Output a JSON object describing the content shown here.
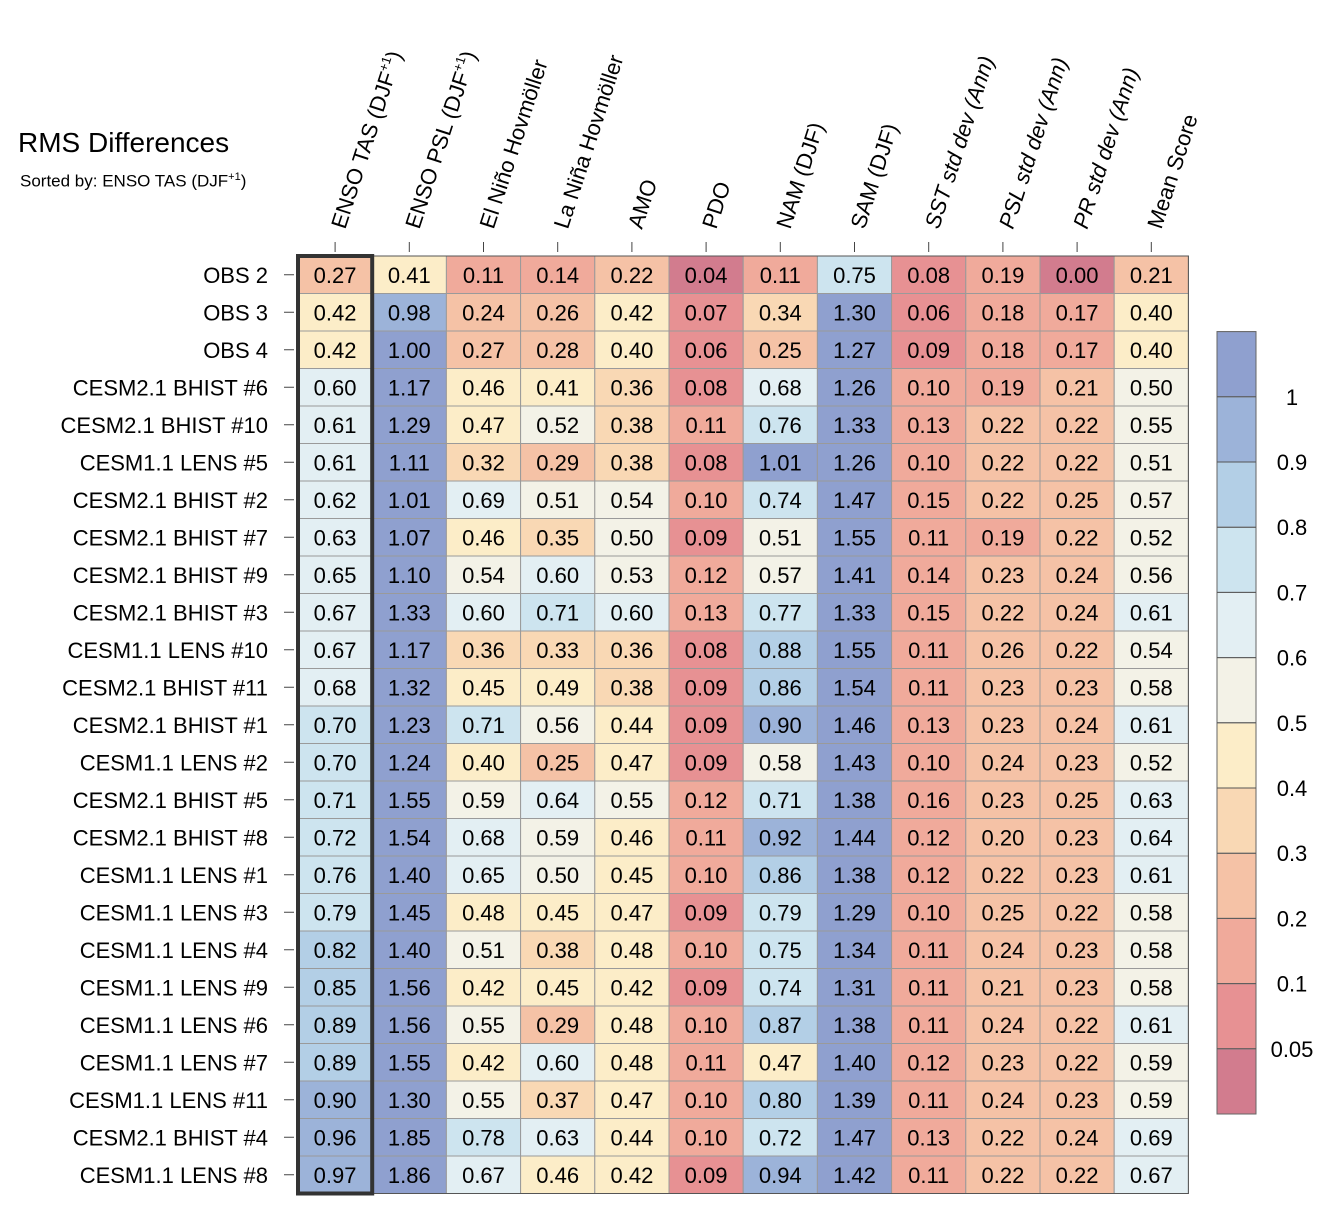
{
  "chart_data": {
    "type": "heatmap",
    "title": "RMS Differences",
    "subtitle": "Sorted by: ENSO TAS (DJF",
    "subtitle_sup": "+1",
    "subtitle_tail": ")",
    "columns": [
      {
        "label": "ENSO TAS (DJF",
        "sup": "+1",
        "tail": ")",
        "italic": false
      },
      {
        "label": "ENSO PSL (DJF",
        "sup": "+1",
        "tail": ")",
        "italic": false
      },
      {
        "label": "El Niño Hovmöller",
        "italic": false
      },
      {
        "label": "La Niña Hovmöller",
        "italic": false
      },
      {
        "label": "AMO",
        "italic": false
      },
      {
        "label": "PDO",
        "italic": false
      },
      {
        "label": "NAM (DJF)",
        "italic": false
      },
      {
        "label": "SAM (DJF)",
        "italic": false
      },
      {
        "label": "SST std dev (Ann)",
        "italic": true
      },
      {
        "label": "PSL std dev (Ann)",
        "italic": true
      },
      {
        "label": "PR std dev (Ann)",
        "italic": true
      },
      {
        "label": "Mean Score",
        "italic": false
      }
    ],
    "rows": [
      "OBS 2",
      "OBS 3",
      "OBS 4",
      "CESM2.1 BHIST #6",
      "CESM2.1 BHIST #10",
      "CESM1.1 LENS #5",
      "CESM2.1 BHIST #2",
      "CESM2.1 BHIST #7",
      "CESM2.1 BHIST #9",
      "CESM2.1 BHIST #3",
      "CESM1.1 LENS #10",
      "CESM2.1 BHIST #11",
      "CESM2.1 BHIST #1",
      "CESM1.1 LENS #2",
      "CESM2.1 BHIST #5",
      "CESM2.1 BHIST #8",
      "CESM1.1 LENS #1",
      "CESM1.1 LENS #3",
      "CESM1.1 LENS #4",
      "CESM1.1 LENS #9",
      "CESM1.1 LENS #6",
      "CESM1.1 LENS #7",
      "CESM1.1 LENS #11",
      "CESM2.1 BHIST #4",
      "CESM1.1 LENS #8"
    ],
    "values": [
      [
        "0.27",
        "0.41",
        "0.11",
        "0.14",
        "0.22",
        "0.04",
        "0.11",
        "0.75",
        "0.08",
        "0.19",
        "0.00",
        "0.21"
      ],
      [
        "0.42",
        "0.98",
        "0.24",
        "0.26",
        "0.42",
        "0.07",
        "0.34",
        "1.30",
        "0.06",
        "0.18",
        "0.17",
        "0.40"
      ],
      [
        "0.42",
        "1.00",
        "0.27",
        "0.28",
        "0.40",
        "0.06",
        "0.25",
        "1.27",
        "0.09",
        "0.18",
        "0.17",
        "0.40"
      ],
      [
        "0.60",
        "1.17",
        "0.46",
        "0.41",
        "0.36",
        "0.08",
        "0.68",
        "1.26",
        "0.10",
        "0.19",
        "0.21",
        "0.50"
      ],
      [
        "0.61",
        "1.29",
        "0.47",
        "0.52",
        "0.38",
        "0.11",
        "0.76",
        "1.33",
        "0.13",
        "0.22",
        "0.22",
        "0.55"
      ],
      [
        "0.61",
        "1.11",
        "0.32",
        "0.29",
        "0.38",
        "0.08",
        "1.01",
        "1.26",
        "0.10",
        "0.22",
        "0.22",
        "0.51"
      ],
      [
        "0.62",
        "1.01",
        "0.69",
        "0.51",
        "0.54",
        "0.10",
        "0.74",
        "1.47",
        "0.15",
        "0.22",
        "0.25",
        "0.57"
      ],
      [
        "0.63",
        "1.07",
        "0.46",
        "0.35",
        "0.50",
        "0.09",
        "0.51",
        "1.55",
        "0.11",
        "0.19",
        "0.22",
        "0.52"
      ],
      [
        "0.65",
        "1.10",
        "0.54",
        "0.60",
        "0.53",
        "0.12",
        "0.57",
        "1.41",
        "0.14",
        "0.23",
        "0.24",
        "0.56"
      ],
      [
        "0.67",
        "1.33",
        "0.60",
        "0.71",
        "0.60",
        "0.13",
        "0.77",
        "1.33",
        "0.15",
        "0.22",
        "0.24",
        "0.61"
      ],
      [
        "0.67",
        "1.17",
        "0.36",
        "0.33",
        "0.36",
        "0.08",
        "0.88",
        "1.55",
        "0.11",
        "0.26",
        "0.22",
        "0.54"
      ],
      [
        "0.68",
        "1.32",
        "0.45",
        "0.49",
        "0.38",
        "0.09",
        "0.86",
        "1.54",
        "0.11",
        "0.23",
        "0.23",
        "0.58"
      ],
      [
        "0.70",
        "1.23",
        "0.71",
        "0.56",
        "0.44",
        "0.09",
        "0.90",
        "1.46",
        "0.13",
        "0.23",
        "0.24",
        "0.61"
      ],
      [
        "0.70",
        "1.24",
        "0.40",
        "0.25",
        "0.47",
        "0.09",
        "0.58",
        "1.43",
        "0.10",
        "0.24",
        "0.23",
        "0.52"
      ],
      [
        "0.71",
        "1.55",
        "0.59",
        "0.64",
        "0.55",
        "0.12",
        "0.71",
        "1.38",
        "0.16",
        "0.23",
        "0.25",
        "0.63"
      ],
      [
        "0.72",
        "1.54",
        "0.68",
        "0.59",
        "0.46",
        "0.11",
        "0.92",
        "1.44",
        "0.12",
        "0.20",
        "0.23",
        "0.64"
      ],
      [
        "0.76",
        "1.40",
        "0.65",
        "0.50",
        "0.45",
        "0.10",
        "0.86",
        "1.38",
        "0.12",
        "0.22",
        "0.23",
        "0.61"
      ],
      [
        "0.79",
        "1.45",
        "0.48",
        "0.45",
        "0.47",
        "0.09",
        "0.79",
        "1.29",
        "0.10",
        "0.25",
        "0.22",
        "0.58"
      ],
      [
        "0.82",
        "1.40",
        "0.51",
        "0.38",
        "0.48",
        "0.10",
        "0.75",
        "1.34",
        "0.11",
        "0.24",
        "0.23",
        "0.58"
      ],
      [
        "0.85",
        "1.56",
        "0.42",
        "0.45",
        "0.42",
        "0.09",
        "0.74",
        "1.31",
        "0.11",
        "0.21",
        "0.23",
        "0.58"
      ],
      [
        "0.89",
        "1.56",
        "0.55",
        "0.29",
        "0.48",
        "0.10",
        "0.87",
        "1.38",
        "0.11",
        "0.24",
        "0.22",
        "0.61"
      ],
      [
        "0.89",
        "1.55",
        "0.42",
        "0.60",
        "0.48",
        "0.11",
        "0.47",
        "1.40",
        "0.12",
        "0.23",
        "0.22",
        "0.59"
      ],
      [
        "0.90",
        "1.30",
        "0.55",
        "0.37",
        "0.47",
        "0.10",
        "0.80",
        "1.39",
        "0.11",
        "0.24",
        "0.23",
        "0.59"
      ],
      [
        "0.96",
        "1.85",
        "0.78",
        "0.63",
        "0.44",
        "0.10",
        "0.72",
        "1.47",
        "0.13",
        "0.22",
        "0.24",
        "0.69"
      ],
      [
        "0.97",
        "1.86",
        "0.67",
        "0.46",
        "0.42",
        "0.09",
        "0.94",
        "1.42",
        "0.11",
        "0.22",
        "0.22",
        "0.67"
      ]
    ],
    "sorted_column": 0,
    "colorbar": {
      "thresholds": [
        0.05,
        0.1,
        0.2,
        0.3,
        0.4,
        0.5,
        0.6,
        0.7,
        0.8,
        0.9,
        1
      ],
      "tick_labels": [
        "0.05",
        "0.1",
        "0.2",
        "0.3",
        "0.4",
        "0.5",
        "0.6",
        "0.7",
        "0.8",
        "0.9",
        "1"
      ],
      "colors": [
        "#d27c8e",
        "#e79193",
        "#f0aa9b",
        "#f5c2a6",
        "#f9d8b4",
        "#fcedc8",
        "#f3f2e7",
        "#e3eff3",
        "#cde4ef",
        "#b3cfe6",
        "#9cb3d9",
        "#8fa0cf"
      ]
    }
  }
}
